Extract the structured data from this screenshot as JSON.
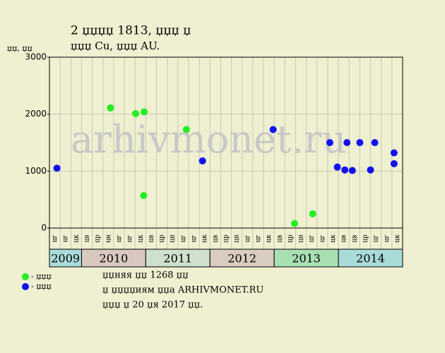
{
  "chart_data": {
    "type": "scatter",
    "title": "2 џџџџ 1813, џџџ џ",
    "subtitle": "џџџ Cu, џџџ AU.",
    "y_label": "џџ, џџ",
    "watermark": "arhivmonet.ru",
    "categories": [
      "цг",
      "цг",
      "цк",
      "цв",
      "цр",
      "цн",
      "цг",
      "цг",
      "цк",
      "цв",
      "цр",
      "цн",
      "цг",
      "цг",
      "цк",
      "цв",
      "цр",
      "цн",
      "цг",
      "цг",
      "цк",
      "цв",
      "цр",
      "цн",
      "цг",
      "цг",
      "цк",
      "цв",
      "цв",
      "цр",
      "цг",
      "цг",
      "цк"
    ],
    "years": [
      {
        "label": "2009",
        "span": 3,
        "color": "#a9dbd9"
      },
      {
        "label": "2010",
        "span": 6,
        "color": "#d9c8bf"
      },
      {
        "label": "2011",
        "span": 6,
        "color": "#cfe0cc"
      },
      {
        "label": "2012",
        "span": 6,
        "color": "#d9cdbf"
      },
      {
        "label": "2013",
        "span": 6,
        "color": "#a8e0b4"
      },
      {
        "label": "2014",
        "span": 6,
        "color": "#a9dbd9"
      }
    ],
    "xlim": [
      0,
      33
    ],
    "ylim": [
      0,
      3000
    ],
    "yticks": [
      0,
      1000,
      2000,
      3000
    ],
    "grid": true,
    "series": [
      {
        "name": "- џџџ",
        "color": "#22ee22",
        "x": [
          5.7,
          8.05,
          8.85,
          8.8,
          12.8,
          22.9,
          24.6
        ],
        "values": [
          2110,
          2010,
          2040,
          570,
          1730,
          80,
          250
        ]
      },
      {
        "name": "- џџџ",
        "color": "#1111ee",
        "x": [
          0.7,
          14.3,
          20.9,
          26.2,
          26.9,
          27.6,
          27.8,
          28.3,
          29.0,
          30.0,
          30.4,
          32.2,
          32.2
        ],
        "values": [
          1050,
          1180,
          1730,
          1500,
          1070,
          1020,
          1500,
          1010,
          1500,
          1020,
          1500,
          1320,
          1130
        ]
      }
    ],
    "notes": [
      "џџняя џџ 1268 џџ",
      "џ џџџџиям џџа ARHIVMONET.RU",
      "џџџ џ 20 џя 2017 џџ."
    ]
  }
}
